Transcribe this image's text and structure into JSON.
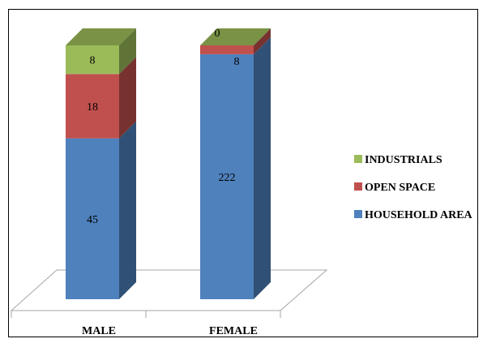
{
  "chart_data": {
    "type": "bar",
    "stacked": true,
    "three_d": true,
    "categories": [
      "MALE",
      "FEMALE"
    ],
    "series": [
      {
        "name": "HOUSEHOLD AREA",
        "values": [
          45,
          222
        ],
        "color": "#4f81bd"
      },
      {
        "name": "OPEN SPACE",
        "values": [
          18,
          8
        ],
        "color": "#c0504d"
      },
      {
        "name": "INDUSTRIALS",
        "values": [
          8,
          0
        ],
        "color": "#9bbb59"
      }
    ],
    "normalized_to_100_percent": true,
    "legend_position": "right",
    "grid": false
  }
}
